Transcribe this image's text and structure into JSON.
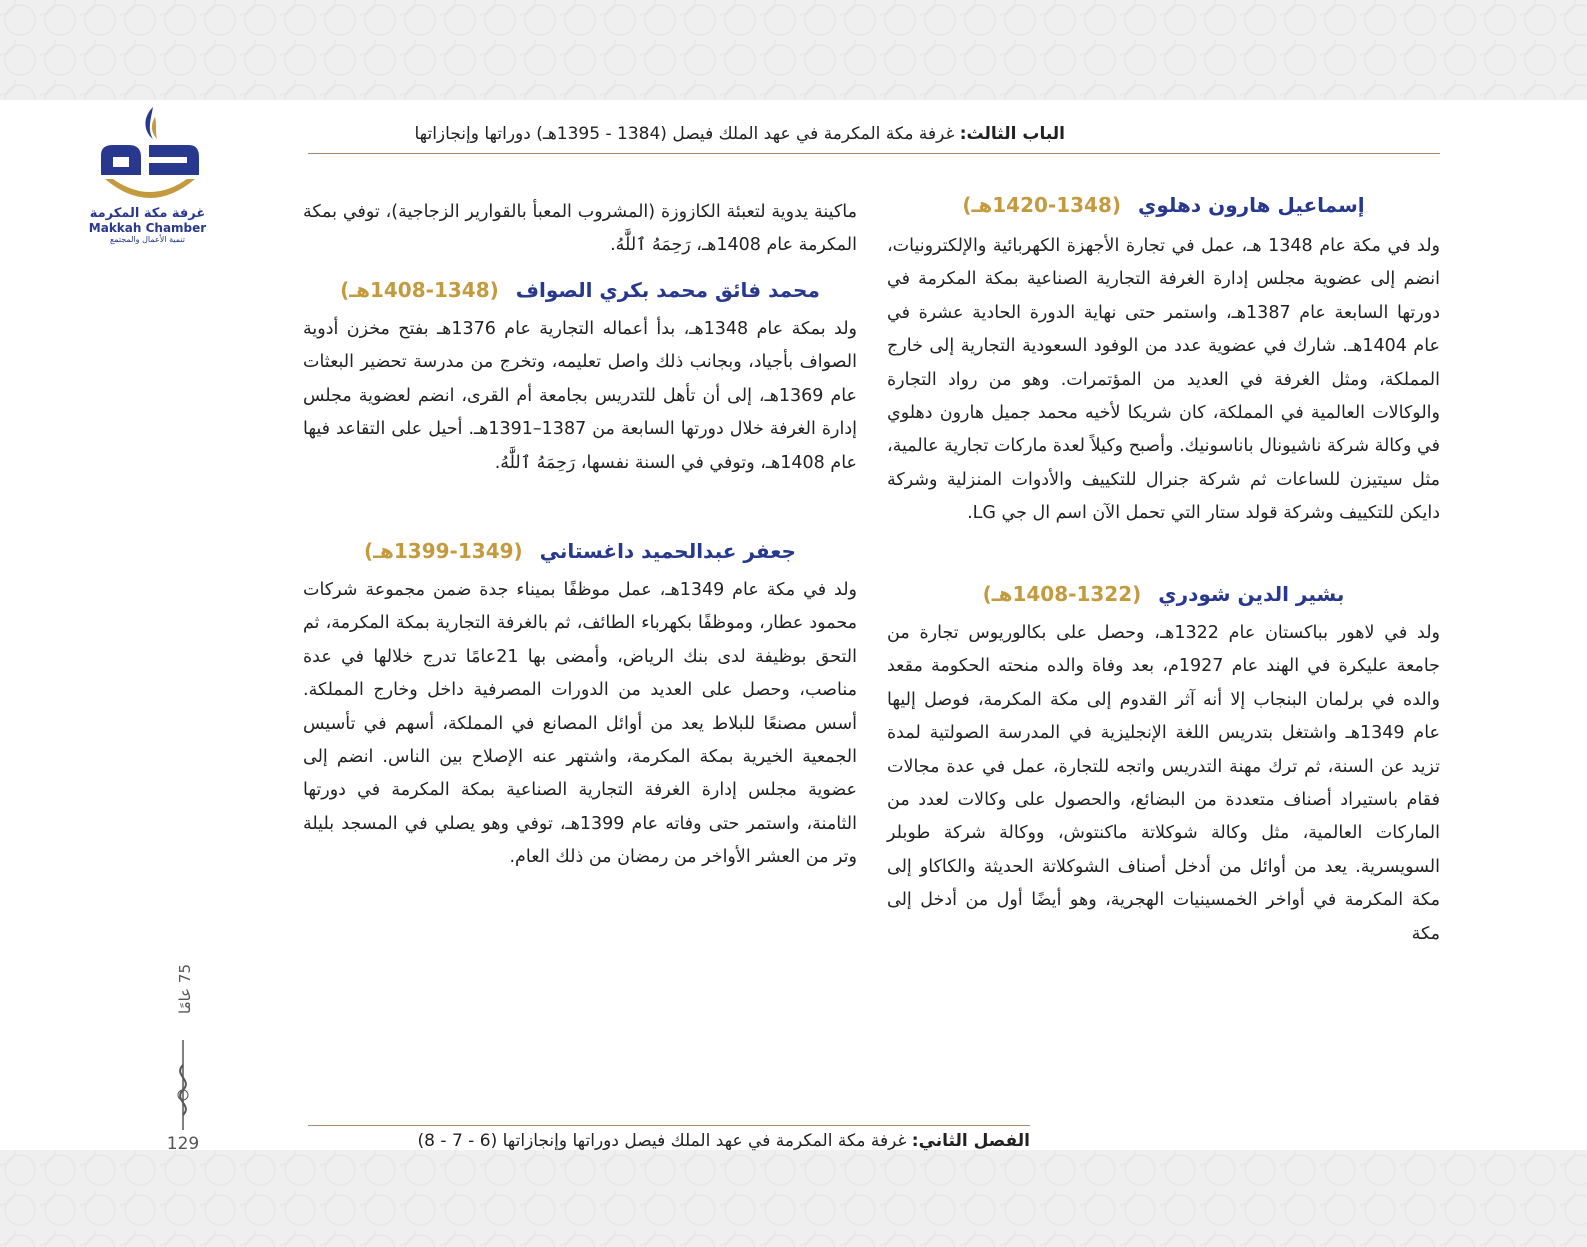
{
  "header": {
    "label": "الباب الثالث:",
    "title": "غرفة مكة المكرمة في عهد الملك فيصل (1384 - 1395هـ) دوراتها وإنجازاتها"
  },
  "logo": {
    "name_ar": "غرفة مكة المكرمة",
    "name_en": "Makkah Chamber",
    "tagline": "تنمية الأعمال والمجتمع"
  },
  "sidebar": {
    "anniversary": "75 عامًا",
    "page_number": "129"
  },
  "right_column": {
    "sections": [
      {
        "name": "إسماعيل هارون دهلوي",
        "years": "(1348-1420هـ)",
        "text": "ولد في مكة عام 1348 هـ، عمل في تجارة الأجهزة الكهربائية والإلكترونيات، انضم إلى عضوية مجلس إدارة الغرفة التجارية الصناعية بمكة المكرمة في دورتها السابعة عام 1387هـ، واستمر حتى نهاية الدورة الحادية عشرة في عام 1404هـ. شارك في عضوية عدد من الوفود السعودية التجارية إلى خارج المملكة، ومثل الغرفة في العديد من المؤتمرات. وهو من رواد التجارة والوكالات العالمية في المملكة، كان شريكا لأخيه محمد جميل هارون دهلوي في وكالة شركة ناشيونال باناسونيك. وأصبح وكيلاً لعدة ماركات تجارية عالمية، مثل سيتيزن للساعات ثم شركة جنرال للتكييف والأدوات المنزلية وشركة دايكن للتكييف وشركة قولد ستار التي تحمل الآن اسم ال جي LG."
      },
      {
        "name": "بشير الدين شودري",
        "years": "(1322-1408هـ)",
        "text": "ولد في لاهور بباكستان عام 1322هـ، وحصل على بكالوريوس تجارة من جامعة عليكرة في الهند عام 1927م، بعد وفاة والده منحته الحكومة مقعد والده في برلمان البنجاب إلا أنه آثر القدوم إلى مكة المكرمة، فوصل إليها عام 1349هـ واشتغل بتدريس اللغة الإنجليزية في المدرسة الصولتية لمدة تزيد عن السنة، ثم ترك مهنة التدريس واتجه للتجارة، عمل في عدة مجالات فقام باستيراد أصناف متعددة من البضائع، والحصول على وكالات لعدد من الماركات العالمية، مثل وكالة شوكلاتة ماكنتوش، ووكالة شركة طوبلر السويسرية. يعد من أوائل من أدخل أصناف الشوكلاتة الحديثة والكاكاو إلى مكة المكرمة في أواخر الخمسينيات الهجرية، وهو أيضًا أول من أدخل إلى مكة"
      }
    ]
  },
  "left_column": {
    "continuation": "ماكينة يدوية لتعبئة الكازوزة (المشروب المعبأ بالقوارير الزجاجية)، توفي بمكة المكرمة عام 1408هـ، رَحِمَهُ ٱللَّٰهُ.",
    "sections": [
      {
        "name": "محمد فائق محمد بكري الصواف",
        "years": "(1348-1408هـ)",
        "text": "ولد بمكة عام 1348هـ، بدأ أعماله التجارية عام 1376هـ بفتح مخزن أدوية الصواف بأجياد، وبجانب ذلك واصل تعليمه، وتخرج من مدرسة تحضير البعثات عام 1369هـ، إلى أن تأهل للتدريس بجامعة أم القرى، انضم لعضوية مجلس إدارة الغرفة خلال دورتها السابعة من 1387–1391هـ. أحيل على التقاعد فيها عام 1408هـ، وتوفي في السنة نفسها، رَحِمَهُ ٱللَّٰهُ."
      },
      {
        "name": "جعفر عبدالحميد داغستاني",
        "years": "(1349-1399هـ)",
        "text": "ولد في مكة عام 1349هـ، عمل موظفًا بميناء جدة ضمن مجموعة شركات محمود عطار، وموظفًا بكهرباء الطائف، ثم بالغرفة التجارية بمكة المكرمة، ثم التحق بوظيفة لدى بنك الرياض، وأمضى بها 21عامًا تدرج خلالها في عدة مناصب، وحصل على العديد من الدورات المصرفية داخل وخارج المملكة. أسس مصنعًا للبلاط يعد من أوائل المصانع في المملكة، أسهم في تأسيس الجمعية الخيرية بمكة المكرمة، واشتهر عنه الإصلاح بين الناس. انضم إلى عضوية مجلس إدارة الغرفة التجارية الصناعية بمكة المكرمة في دورتها الثامنة، واستمر حتى وفاته عام 1399هـ، توفي وهو يصلي في المسجد بليلة وتر من العشر الأواخر من رمضان من ذلك العام."
      }
    ]
  },
  "footer": {
    "label": "الفصل الثاني:",
    "title": "غرفة مكة المكرمة في عهد الملك فيصل دوراتها وإنجازاتها (6 - 7 - 8)"
  }
}
